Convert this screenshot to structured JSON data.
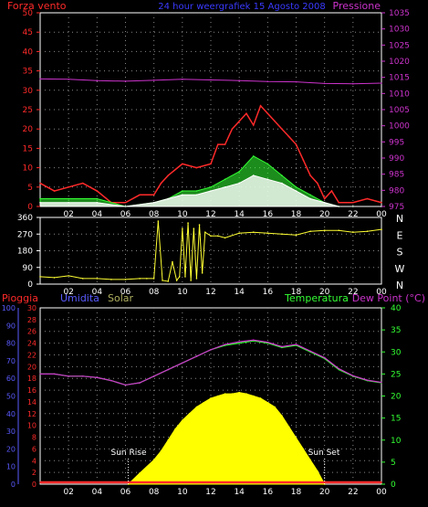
{
  "header": {
    "left": "Forza vento",
    "center": "24 hour weergrafiek 15 Agosto 2008",
    "right": "Pressione",
    "colors": {
      "left": "#ff2a2a",
      "center": "#3a3aff",
      "right": "#cc33cc"
    }
  },
  "legend": {
    "pioggia": "Pioggia",
    "umidita": "Umidita",
    "solar": "Solar",
    "temperatura": "Temperatura",
    "dew_point": "Dew Point (°C)",
    "colors": {
      "pioggia": "#ff2a2a",
      "umidita": "#5a5aff",
      "solar": "#b0b060",
      "temperatura": "#33ff33",
      "dew_point": "#cc33cc"
    }
  },
  "annotations": {
    "sunrise": "Sun Rise",
    "sunset": "Sun Set"
  },
  "chart_data": [
    {
      "type": "line",
      "name": "wind_pressure",
      "x_ticks": [
        "02",
        "04",
        "06",
        "08",
        "10",
        "12",
        "14",
        "16",
        "18",
        "20",
        "22",
        "00"
      ],
      "left_axis": {
        "ticks": [
          0,
          5,
          10,
          15,
          20,
          25,
          30,
          35,
          40,
          45,
          50
        ],
        "ylim": [
          0,
          50
        ],
        "color": "#ff2a2a"
      },
      "right_axis": {
        "ticks": [
          975,
          980,
          985,
          990,
          995,
          1000,
          1005,
          1010,
          1015,
          1020,
          1025,
          1030,
          1035
        ],
        "ylim": [
          975,
          1035
        ],
        "color": "#cc33cc"
      },
      "xlim": [
        0,
        24
      ],
      "grid": true,
      "series": [
        {
          "name": "Pressione",
          "axis": "right",
          "color": "#cc33cc",
          "x": [
            0,
            2,
            4,
            6,
            8,
            10,
            12,
            14,
            16,
            18,
            20,
            22,
            24
          ],
          "values": [
            1014.5,
            1014.4,
            1014,
            1013.8,
            1014.1,
            1014.4,
            1014.2,
            1014,
            1013.7,
            1013.6,
            1013.1,
            1013,
            1013.2
          ]
        },
        {
          "name": "gust",
          "axis": "left",
          "color": "#ff2a2a",
          "x": [
            0,
            1,
            2,
            3,
            4,
            5,
            6,
            7,
            8,
            8.5,
            9,
            10,
            11,
            12,
            12.5,
            13,
            13.5,
            14,
            14.5,
            15,
            15.5,
            16,
            16.5,
            17,
            17.5,
            18,
            18.5,
            19,
            19.5,
            20,
            20.5,
            21,
            22,
            23,
            24
          ],
          "values": [
            6,
            4,
            5,
            6,
            4,
            1,
            1,
            3,
            3,
            6,
            8,
            11,
            10,
            11,
            16,
            16,
            20,
            22,
            24,
            21,
            26,
            24,
            22,
            20,
            18,
            16,
            12,
            8,
            6,
            2,
            4,
            1,
            1,
            2,
            1
          ]
        },
        {
          "name": "average",
          "axis": "left",
          "color": "#33ff33",
          "x": [
            0,
            2,
            4,
            6,
            8,
            9,
            10,
            11,
            12,
            13,
            14,
            15,
            16,
            17,
            18,
            19,
            20,
            21,
            22,
            24
          ],
          "values": [
            2,
            2,
            2,
            0,
            1,
            2,
            4,
            4,
            5,
            7,
            9,
            13,
            11,
            8,
            5,
            3,
            1,
            0,
            0,
            0
          ]
        },
        {
          "name": "direction_band",
          "axis": "left",
          "color": "#ffffff",
          "x": [
            0,
            2,
            4,
            6,
            8,
            9,
            10,
            11,
            12,
            13,
            14,
            15,
            16,
            17,
            18,
            19,
            20,
            21,
            22,
            24
          ],
          "values": [
            1,
            1,
            1,
            0,
            1,
            2,
            3,
            3,
            4,
            5,
            6,
            8,
            7,
            6,
            4,
            2,
            1,
            0,
            0,
            0
          ]
        }
      ]
    },
    {
      "type": "line",
      "name": "wind_direction",
      "x_ticks": [
        "02",
        "04",
        "06",
        "08",
        "10",
        "12",
        "14",
        "16",
        "18",
        "20",
        "22",
        "00"
      ],
      "left_axis": {
        "ticks": [
          0,
          90,
          180,
          270,
          360
        ],
        "ylim": [
          0,
          360
        ],
        "color": "#ffffff"
      },
      "right_labels": [
        "N",
        "W",
        "S",
        "E",
        "N"
      ],
      "xlim": [
        0,
        24
      ],
      "grid": true,
      "series": [
        {
          "name": "direction",
          "color": "#ffff33",
          "x": [
            0,
            1,
            2,
            3,
            4,
            5,
            6,
            7,
            7.5,
            8,
            8.3,
            8.6,
            9,
            9.3,
            9.6,
            9.8,
            10,
            10.2,
            10.4,
            10.6,
            10.8,
            11,
            11.2,
            11.4,
            11.6,
            12,
            12.5,
            13,
            14,
            15,
            16,
            17,
            18,
            19,
            20,
            21,
            22,
            23,
            24
          ],
          "values": [
            40,
            35,
            45,
            30,
            30,
            25,
            25,
            30,
            30,
            30,
            340,
            20,
            15,
            120,
            20,
            40,
            300,
            40,
            330,
            20,
            300,
            30,
            320,
            60,
            280,
            260,
            260,
            250,
            275,
            280,
            275,
            270,
            265,
            285,
            290,
            290,
            280,
            285,
            295
          ]
        }
      ]
    },
    {
      "type": "area",
      "name": "temp_humidity_solar",
      "x_ticks": [
        "02",
        "04",
        "06",
        "08",
        "10",
        "12",
        "14",
        "16",
        "18",
        "20",
        "22",
        "00"
      ],
      "left_axis_outer": {
        "ticks": [
          0,
          10,
          20,
          30,
          40,
          50,
          60,
          70,
          80,
          90,
          100
        ],
        "ylim": [
          0,
          100
        ],
        "color": "#5a5aff"
      },
      "left_axis_inner": {
        "ticks": [
          0,
          2,
          4,
          6,
          8,
          10,
          12,
          14,
          16,
          18,
          20,
          22,
          24,
          26,
          28,
          30
        ],
        "ylim": [
          0,
          30
        ],
        "color": "#ff2a2a"
      },
      "right_axis": {
        "ticks": [
          0,
          5,
          10,
          15,
          20,
          25,
          30,
          35,
          40
        ],
        "ylim": [
          0,
          40
        ],
        "color": "#33ff33"
      },
      "xlim": [
        0,
        24
      ],
      "grid": true,
      "series": [
        {
          "name": "Temperatura",
          "axis": "right",
          "color": "#33ff33",
          "x": [
            0,
            1,
            2,
            3,
            4,
            5,
            6,
            7,
            8,
            9,
            10,
            11,
            12,
            13,
            14,
            15,
            16,
            17,
            18,
            19,
            20,
            21,
            22,
            23,
            24
          ],
          "values": [
            25,
            25,
            24.5,
            24.5,
            24.2,
            23.5,
            22.5,
            23,
            24.5,
            26,
            27.5,
            29,
            30.5,
            31.5,
            32,
            32.5,
            32,
            31,
            31.5,
            30,
            28.5,
            26,
            24.5,
            23.5,
            23
          ]
        },
        {
          "name": "Dew Point (°C)",
          "axis": "right",
          "color": "#cc33cc",
          "x": [
            0,
            1,
            2,
            3,
            4,
            5,
            6,
            7,
            8,
            9,
            10,
            11,
            12,
            13,
            14,
            15,
            16,
            17,
            18,
            19,
            20,
            21,
            22,
            23,
            24
          ],
          "values": [
            25,
            25,
            24.5,
            24.5,
            24.2,
            23.5,
            22.5,
            23,
            24.5,
            26,
            27.5,
            29,
            30.5,
            31.7,
            32.3,
            32.7,
            32.2,
            31.2,
            31.7,
            30.2,
            28.7,
            26.2,
            24.6,
            23.6,
            23.1
          ]
        },
        {
          "name": "Solar",
          "axis": "right",
          "color": "#ffff00",
          "fill": true,
          "x": [
            6.2,
            7,
            8,
            8.5,
            9,
            9.5,
            10,
            10.5,
            11,
            11.5,
            12,
            12.5,
            13,
            13.5,
            14,
            14.5,
            15,
            15.5,
            16,
            16.5,
            17,
            17.5,
            18,
            18.5,
            19,
            19.5,
            20
          ],
          "values": [
            0,
            2.5,
            5.5,
            7.5,
            10,
            12.5,
            14.5,
            16,
            17.5,
            18.5,
            19.5,
            20,
            20.5,
            20.5,
            20.8,
            20.5,
            20,
            19.5,
            18.5,
            17.5,
            15.5,
            13,
            10.5,
            8,
            5.5,
            3,
            0
          ]
        },
        {
          "name": "Pioggia",
          "axis": "inner",
          "color": "#ff2a2a",
          "x": [
            0,
            24
          ],
          "values": [
            0,
            0
          ]
        }
      ]
    }
  ]
}
